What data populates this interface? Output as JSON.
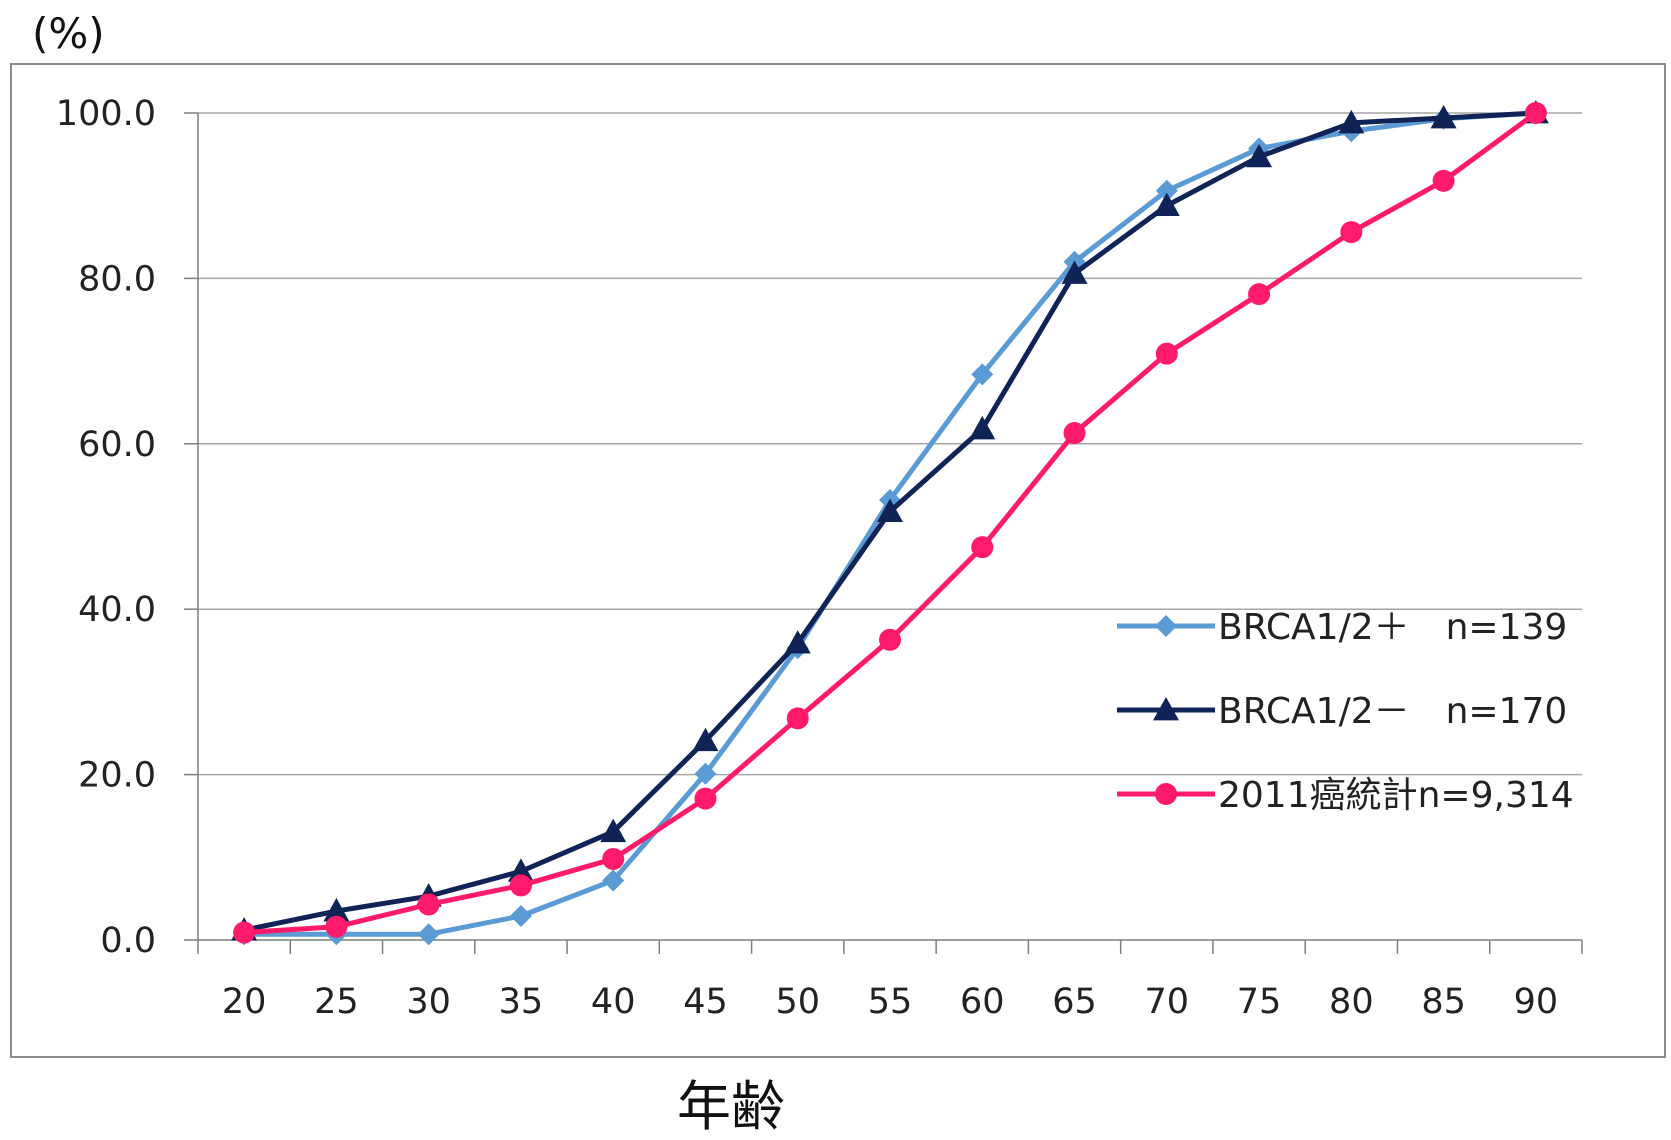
{
  "chart_data": {
    "type": "line",
    "unit_label": "(%)",
    "xlabel": "年齢",
    "ylabel": "",
    "ylim": [
      0,
      100
    ],
    "yticks": [
      "0.0",
      "20.0",
      "40.0",
      "60.0",
      "80.0",
      "100.0"
    ],
    "x": [
      20,
      25,
      30,
      35,
      40,
      45,
      50,
      55,
      60,
      65,
      70,
      75,
      80,
      85,
      90
    ],
    "grid": true,
    "legend_position": "right",
    "series": [
      {
        "name": "BRCA1/2＋　n=139",
        "color": "#5b9bd5",
        "marker": "diamond",
        "values": [
          0.7,
          0.7,
          0.7,
          2.9,
          7.2,
          20.1,
          35.3,
          53.2,
          68.4,
          82.0,
          90.6,
          95.7,
          97.8,
          99.3,
          100.0
        ]
      },
      {
        "name": "BRCA1/2－　n=170",
        "color": "#0f2357",
        "marker": "triangle",
        "values": [
          1.2,
          3.5,
          5.3,
          8.3,
          13.1,
          24.1,
          35.9,
          51.8,
          61.8,
          80.6,
          88.8,
          94.7,
          98.8,
          99.4,
          100.0
        ]
      },
      {
        "name": "2011癌統計n=9,314",
        "color": "#ff1a6b",
        "marker": "circle",
        "values": [
          0.9,
          1.6,
          4.3,
          6.6,
          9.8,
          17.1,
          26.8,
          36.3,
          47.5,
          61.3,
          70.9,
          78.1,
          85.6,
          91.8,
          100.0
        ]
      }
    ]
  }
}
